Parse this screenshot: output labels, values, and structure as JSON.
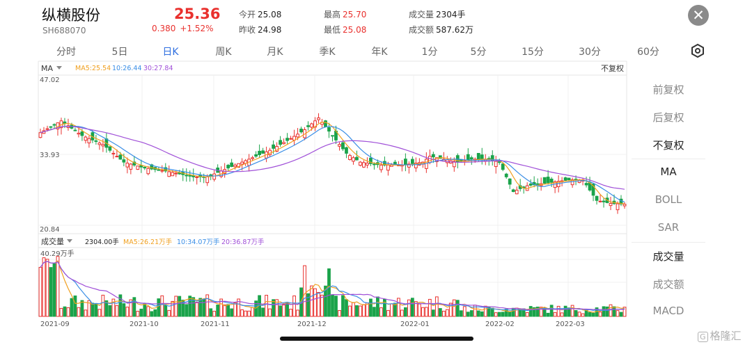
{
  "header": {
    "name": "纵横股份",
    "code": "SH688070",
    "price": "25.36",
    "change": "0.380",
    "change_pct": "+1.52%",
    "quotes": [
      {
        "label": "今开",
        "value": "25.08",
        "tone": "plain"
      },
      {
        "label": "最高",
        "value": "25.70",
        "tone": "red"
      },
      {
        "label": "成交量",
        "value": "2304手",
        "tone": "plain"
      },
      {
        "label": "昨收",
        "value": "24.98",
        "tone": "plain"
      },
      {
        "label": "最低",
        "value": "25.08",
        "tone": "red"
      },
      {
        "label": "成交额",
        "value": "587.62万",
        "tone": "plain"
      }
    ],
    "close_icon": "close-icon"
  },
  "periods": [
    {
      "label": "分时",
      "active": false
    },
    {
      "label": "5日",
      "active": false
    },
    {
      "label": "日K",
      "active": true
    },
    {
      "label": "周K",
      "active": false
    },
    {
      "label": "月K",
      "active": false
    },
    {
      "label": "季K",
      "active": false
    },
    {
      "label": "年K",
      "active": false
    },
    {
      "label": "1分",
      "active": false
    },
    {
      "label": "5分",
      "active": false
    },
    {
      "label": "15分",
      "active": false
    },
    {
      "label": "30分",
      "active": false
    },
    {
      "label": "60分",
      "active": false
    }
  ],
  "settings_icon": "hexagon-settings-icon",
  "price_panel": {
    "indicator": "MA",
    "ma_legend": [
      {
        "label": "MA5:25.54",
        "color": "#f0a020"
      },
      {
        "label": "10:26.44",
        "color": "#3a8ee6"
      },
      {
        "label": "30:27.84",
        "color": "#a050d8"
      }
    ],
    "adjust_label": "不复权",
    "y_labels": [
      "47.02",
      "33.93",
      "20.84"
    ]
  },
  "volume_panel": {
    "indicator": "成交量",
    "current": "2304.00手",
    "ma_legend": [
      {
        "label": "MA5:26.21万手",
        "color": "#f0a020"
      },
      {
        "label": "10:34.07万手",
        "color": "#3a8ee6"
      },
      {
        "label": "20:36.87万手",
        "color": "#a050d8"
      }
    ],
    "max_label": "40.29万手"
  },
  "x_labels": [
    "2021-09",
    "2021-10",
    "2021-11",
    "2021-12",
    "2022-01",
    "2022-02",
    "2022-03"
  ],
  "side_menu": [
    {
      "label": "前复权",
      "active": false
    },
    {
      "label": "后复权",
      "active": false
    },
    {
      "label": "不复权",
      "active": true
    },
    {
      "label": "MA",
      "active": true
    },
    {
      "label": "BOLL",
      "active": false
    },
    {
      "label": "SAR",
      "active": false
    },
    {
      "label": "成交量",
      "active": true
    },
    {
      "label": "成交额",
      "active": false
    },
    {
      "label": "MACD",
      "active": false
    }
  ],
  "watermark": {
    "box": "G",
    "text": "格隆汇"
  },
  "colors": {
    "up": "#e9302d",
    "down": "#1aa34a",
    "active": "#2f6fe0"
  },
  "chart_data": {
    "type": "candlestick",
    "y_range": [
      20.84,
      47.02
    ],
    "volume_max": "40.29万手",
    "close_anchors": [
      [
        0,
        37.5
      ],
      [
        6,
        39.5
      ],
      [
        12,
        37.0
      ],
      [
        18,
        35.5
      ],
      [
        24,
        32.5
      ],
      [
        30,
        31.5
      ],
      [
        36,
        31.0
      ],
      [
        44,
        30.0
      ],
      [
        48,
        30.0
      ],
      [
        54,
        31.5
      ],
      [
        60,
        33.0
      ],
      [
        66,
        34.5
      ],
      [
        72,
        36.5
      ],
      [
        76,
        38.0
      ],
      [
        80,
        40.0
      ],
      [
        84,
        37.0
      ],
      [
        88,
        34.0
      ],
      [
        92,
        32.5
      ],
      [
        98,
        32.0
      ],
      [
        104,
        32.0
      ],
      [
        110,
        32.5
      ],
      [
        112,
        33.5
      ],
      [
        120,
        32.5
      ],
      [
        124,
        33.0
      ],
      [
        128,
        33.0
      ],
      [
        132,
        32.5
      ],
      [
        136,
        27.5
      ],
      [
        140,
        28.5
      ],
      [
        146,
        29.0
      ],
      [
        152,
        29.5
      ],
      [
        156,
        29.5
      ],
      [
        160,
        26.0
      ],
      [
        164,
        25.5
      ],
      [
        168,
        25.36
      ]
    ]
  }
}
